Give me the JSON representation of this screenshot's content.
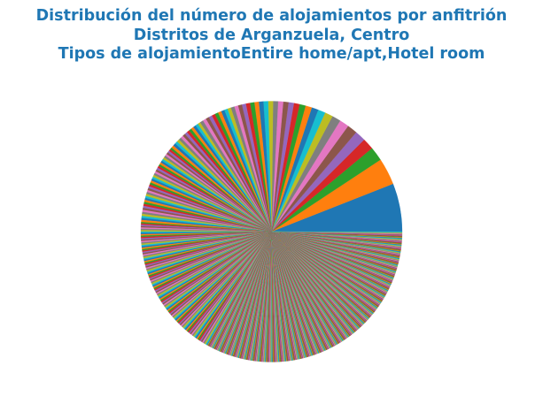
{
  "chart_data": {
    "type": "pie",
    "title_lines": [
      "Distribución del número de alojamientos por anfitrión",
      "Distritos de Arganzuela, Centro",
      "Tipos de alojamientoEntire home/apt,Hotel room"
    ],
    "labels_shown": false,
    "legend": "none",
    "start_angle_deg": 0,
    "direction": "counterclockwise",
    "colors": [
      "#1f77b4",
      "#ff7f0e",
      "#2ca02c",
      "#d62728",
      "#9467bd",
      "#8c564b",
      "#e377c2",
      "#7f7f7f",
      "#bcbd22",
      "#17becf"
    ],
    "values": [
      72,
      40,
      21,
      17,
      16,
      15,
      14,
      13,
      12,
      11,
      10,
      9.5,
      9,
      8.5,
      8,
      7.8,
      7.6,
      7.4,
      7.2,
      7,
      6.8,
      6.6,
      6.4,
      6.2,
      6,
      5.8,
      5.6,
      5.4,
      5.2,
      5,
      5,
      5,
      5,
      5,
      5,
      5,
      5,
      5,
      4,
      4,
      4,
      4,
      4,
      4,
      4,
      4,
      4,
      4,
      4,
      4,
      4,
      4,
      3,
      3,
      3,
      3,
      3,
      3,
      3,
      3,
      3,
      3,
      3,
      3,
      3,
      3,
      3,
      3,
      3,
      3,
      3,
      3,
      3,
      3,
      3,
      3,
      3,
      3,
      3,
      3,
      3,
      3,
      3,
      3,
      3,
      3,
      3,
      3,
      3,
      3,
      3,
      3,
      2,
      2,
      2,
      2,
      2,
      2,
      2,
      2,
      2,
      2,
      2,
      2,
      2,
      2,
      2,
      2,
      2,
      2,
      2,
      2,
      2,
      2,
      2,
      2,
      2,
      2,
      2,
      2,
      2,
      2,
      2,
      2,
      2,
      2,
      2,
      2,
      2,
      2,
      2,
      2,
      2,
      2,
      2,
      2,
      2,
      2,
      2,
      2,
      2,
      2,
      2,
      2,
      2,
      2,
      2,
      2,
      2,
      2,
      2,
      2,
      2,
      2,
      2,
      2,
      2,
      2,
      2,
      2,
      2,
      2,
      2,
      2,
      2,
      2,
      2,
      2,
      2,
      2,
      2,
      2,
      2,
      2,
      2,
      2,
      2,
      2,
      2,
      2,
      2,
      2,
      2,
      2,
      2,
      2,
      2,
      2,
      2,
      2,
      2,
      2,
      2,
      2,
      2,
      2,
      2,
      2,
      2,
      2,
      1,
      1,
      1,
      1,
      1,
      1,
      1,
      1,
      1,
      1,
      1,
      1,
      1,
      1,
      1,
      1,
      1,
      1,
      1,
      1,
      1,
      1,
      1,
      1,
      1,
      1,
      1,
      1,
      1,
      1,
      1,
      1,
      1,
      1,
      1,
      1,
      1,
      1,
      1,
      1,
      1,
      1,
      1,
      1,
      1,
      1,
      1,
      1,
      1,
      1,
      1,
      1,
      1,
      1,
      1,
      1,
      1,
      1,
      1,
      1,
      1,
      1,
      1,
      1,
      1,
      1,
      1,
      1,
      1,
      1,
      1,
      1,
      1,
      1,
      1,
      1,
      1,
      1,
      1,
      1,
      1,
      1,
      1,
      1,
      1,
      1,
      1,
      1,
      1,
      1,
      1,
      1,
      1,
      1,
      1,
      1,
      1,
      1,
      1,
      1,
      1,
      1,
      1,
      1,
      1,
      1,
      1,
      1,
      1,
      1,
      1,
      1,
      1,
      1,
      1,
      1,
      1,
      1,
      1,
      1,
      1,
      1,
      1,
      1,
      1,
      1,
      1,
      1,
      1,
      1,
      1,
      1,
      1,
      1,
      1,
      1,
      1,
      1,
      1,
      1,
      1,
      1,
      1,
      1,
      1,
      1,
      1,
      1,
      1,
      1,
      1,
      1,
      1,
      1,
      1,
      1,
      1,
      1,
      1,
      1,
      1,
      1,
      1,
      1,
      1,
      1,
      1,
      1,
      1,
      1,
      1,
      1,
      1,
      1,
      1,
      1,
      1,
      1,
      1,
      1,
      1,
      1,
      1,
      1,
      1,
      1,
      1,
      1,
      1,
      1,
      1,
      1,
      1,
      1,
      1,
      1,
      1,
      1,
      1,
      1,
      1,
      1,
      1,
      1,
      1,
      1,
      1,
      1,
      1,
      1,
      1,
      1,
      1,
      1,
      1,
      1,
      1,
      1,
      1,
      1,
      1,
      1,
      1,
      1,
      1,
      1,
      1,
      1,
      1,
      1,
      1,
      1,
      1,
      1,
      1,
      1,
      1,
      1,
      1,
      1,
      1,
      1,
      1,
      1,
      1,
      1,
      1,
      1,
      1,
      1,
      1,
      1,
      1,
      1,
      1,
      1,
      1,
      1,
      1,
      1,
      1,
      1,
      1,
      1,
      1,
      1,
      1,
      1,
      1,
      1,
      1,
      1,
      1,
      1,
      1,
      1,
      1,
      1,
      1,
      1,
      1,
      1,
      1,
      1,
      1,
      1,
      1,
      1,
      1,
      1,
      1,
      1,
      1,
      1,
      1,
      1,
      1,
      1,
      1,
      1,
      1,
      1,
      1,
      1,
      1,
      1,
      1,
      1,
      1,
      1,
      1,
      1,
      1,
      1,
      1,
      1,
      1,
      1,
      1,
      1,
      1,
      1,
      1,
      1,
      1,
      1,
      1,
      1,
      1,
      1,
      1,
      1,
      1,
      1,
      1,
      1,
      1,
      1,
      1,
      1,
      1,
      1,
      1,
      1,
      1,
      1,
      1,
      1,
      1,
      1,
      1,
      1,
      1,
      1,
      1,
      1,
      1,
      1,
      1,
      1,
      1,
      1,
      1,
      1,
      1,
      1,
      1,
      1,
      1,
      1,
      1,
      1,
      1,
      1,
      1,
      1,
      1,
      1,
      1,
      1,
      1,
      1,
      1,
      1,
      1,
      1,
      1,
      1,
      1,
      1,
      1,
      1,
      1,
      1,
      1,
      1,
      1,
      1,
      1,
      1
    ]
  }
}
